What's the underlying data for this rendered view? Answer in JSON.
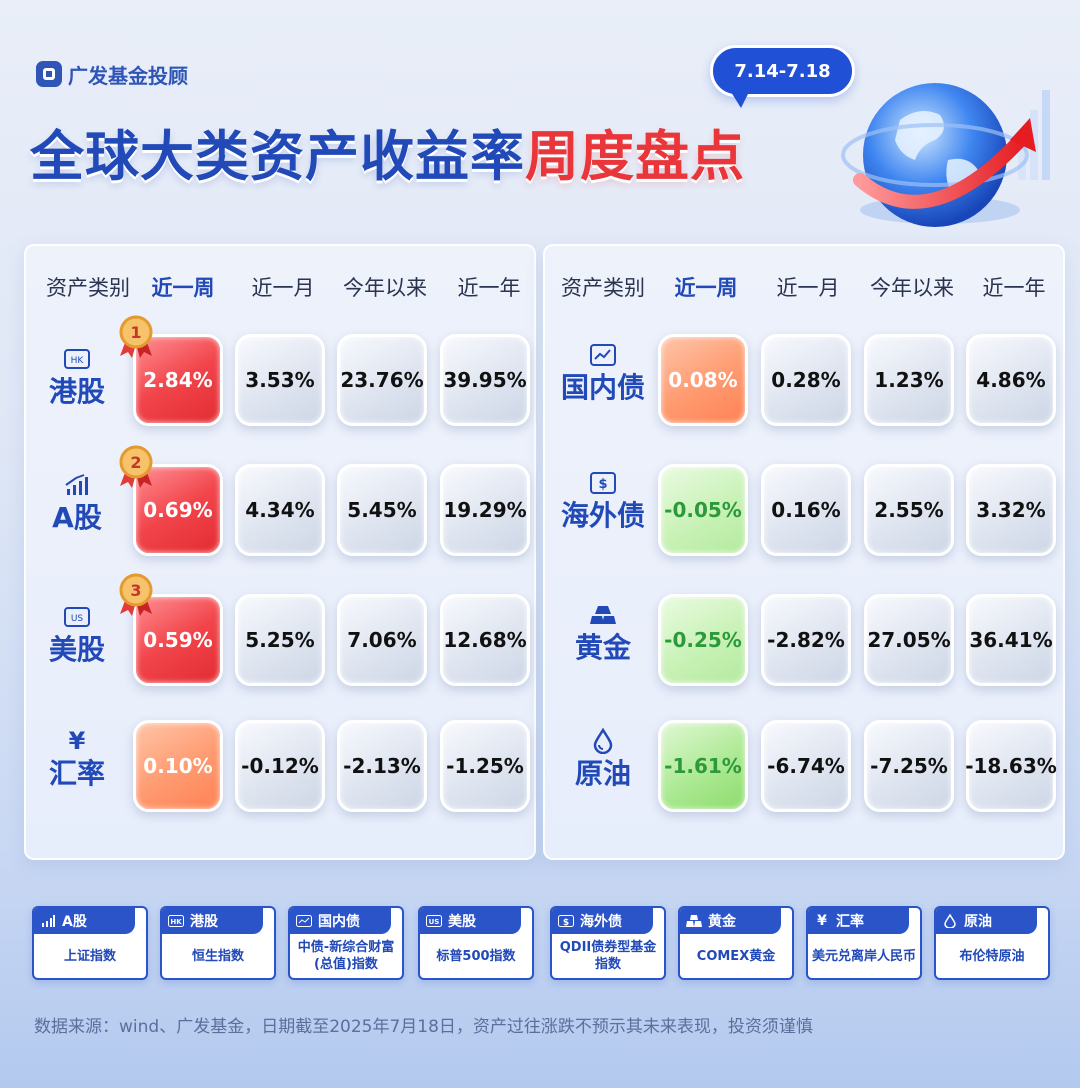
{
  "brand": {
    "name": "广发基金投顾"
  },
  "date_range": "7.14-7.18",
  "title": {
    "part1": "全球大类资产收益率",
    "part2": "周度盘点"
  },
  "colors": {
    "accent_blue": "#2149b8",
    "accent_red": "#e8363a",
    "up_red": "#e22c32",
    "down_green": "#2c9a3a"
  },
  "table_headers": [
    "资产类别",
    "近一周",
    "近一月",
    "今年以来",
    "近一年"
  ],
  "left_table": [
    {
      "asset": "港股",
      "icon": "hk-badge-icon",
      "rank": "1",
      "week": "2.84%",
      "month": "3.53%",
      "ytd": "23.76%",
      "year": "39.95%",
      "tone": "red"
    },
    {
      "asset": "A股",
      "icon": "bar-chart-icon",
      "rank": "2",
      "week": "0.69%",
      "month": "4.34%",
      "ytd": "5.45%",
      "year": "19.29%",
      "tone": "red"
    },
    {
      "asset": "美股",
      "icon": "us-badge-icon",
      "rank": "3",
      "week": "0.59%",
      "month": "5.25%",
      "ytd": "7.06%",
      "year": "12.68%",
      "tone": "red"
    },
    {
      "asset": "汇率",
      "icon": "yen-icon",
      "rank": "",
      "week": "0.10%",
      "month": "-0.12%",
      "ytd": "-2.13%",
      "year": "-1.25%",
      "tone": "orange"
    }
  ],
  "right_table": [
    {
      "asset": "国内债",
      "icon": "trend-card-icon",
      "week": "0.08%",
      "month": "0.28%",
      "ytd": "1.23%",
      "year": "4.86%",
      "tone": "orange"
    },
    {
      "asset": "海外债",
      "icon": "dollar-card-icon",
      "week": "-0.05%",
      "month": "0.16%",
      "ytd": "2.55%",
      "year": "3.32%",
      "tone": "green"
    },
    {
      "asset": "黄金",
      "icon": "gold-bars-icon",
      "week": "-0.25%",
      "month": "-2.82%",
      "ytd": "27.05%",
      "year": "36.41%",
      "tone": "green"
    },
    {
      "asset": "原油",
      "icon": "oil-drop-icon",
      "week": "-1.61%",
      "month": "-6.74%",
      "ytd": "-7.25%",
      "year": "-18.63%",
      "tone": "green2"
    }
  ],
  "legend": [
    {
      "label": "A股",
      "icon": "bar-chart-icon",
      "desc": "上证指数"
    },
    {
      "label": "港股",
      "icon": "hk-badge-icon",
      "desc": "恒生指数"
    },
    {
      "label": "国内债",
      "icon": "trend-card-icon",
      "desc": "中债-新综合财富(总值)指数"
    },
    {
      "label": "美股",
      "icon": "us-badge-icon",
      "desc": "标普500指数"
    },
    {
      "label": "海外债",
      "icon": "dollar-card-icon",
      "desc": "QDII债券型基金指数"
    },
    {
      "label": "黄金",
      "icon": "gold-bars-icon",
      "desc": "COMEX黄金"
    },
    {
      "label": "汇率",
      "icon": "yen-icon",
      "desc": "美元兑离岸人民币"
    },
    {
      "label": "原油",
      "icon": "oil-drop-icon",
      "desc": "布伦特原油"
    }
  ],
  "footnote": "数据来源：wind、广发基金，日期截至2025年7月18日，资产过往涨跌不预示其未来表现，投资须谨慎"
}
